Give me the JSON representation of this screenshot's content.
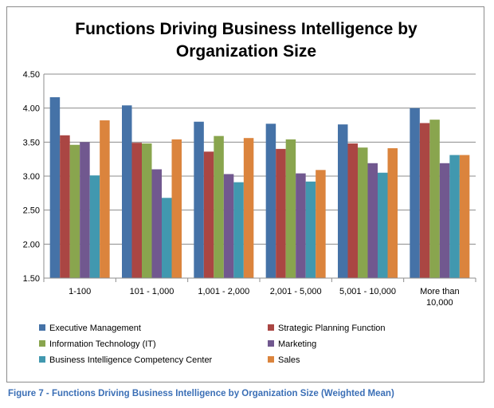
{
  "chart_data": {
    "type": "bar",
    "title": "Functions Driving Business Intelligence by Organization Size",
    "title_lines": [
      "Functions Driving Business Intelligence by",
      "Organization Size"
    ],
    "categories": [
      "1-100",
      "101 - 1,000",
      "1,001 - 2,000",
      "2,001 - 5,000",
      "5,001 - 10,000",
      "More than 10,000"
    ],
    "category_lines": [
      [
        "1-100"
      ],
      [
        "101 - 1,000"
      ],
      [
        "1,001 - 2,000"
      ],
      [
        "2,001 - 5,000"
      ],
      [
        "5,001 - 10,000"
      ],
      [
        "More than",
        "10,000"
      ]
    ],
    "ylim": [
      1.5,
      4.5
    ],
    "yticks": [
      "1.50",
      "2.00",
      "2.50",
      "3.00",
      "3.50",
      "4.00",
      "4.50"
    ],
    "grid": true,
    "legend_position": "bottom",
    "series": [
      {
        "name": "Executive Management",
        "color": "#4572a7",
        "values": [
          4.16,
          4.04,
          3.8,
          3.77,
          3.76,
          4.0
        ]
      },
      {
        "name": "Strategic Planning Function",
        "color": "#aa4643",
        "values": [
          3.6,
          3.49,
          3.36,
          3.4,
          3.48,
          3.78
        ]
      },
      {
        "name": "Information Technology (IT)",
        "color": "#89a54e",
        "values": [
          3.46,
          3.48,
          3.59,
          3.54,
          3.42,
          3.83
        ]
      },
      {
        "name": "Marketing",
        "color": "#71588f",
        "values": [
          3.5,
          3.1,
          3.03,
          3.04,
          3.19,
          3.19
        ]
      },
      {
        "name": "Business Intelligence Competency Center",
        "color": "#4198af",
        "values": [
          3.01,
          2.68,
          2.91,
          2.92,
          3.05,
          3.31
        ]
      },
      {
        "name": "Sales",
        "color": "#db843d",
        "values": [
          3.82,
          3.54,
          3.56,
          3.09,
          3.41,
          3.31
        ]
      }
    ]
  },
  "caption": "Figure 7 - Functions Driving Business Intelligence by Organization Size (Weighted Mean)"
}
